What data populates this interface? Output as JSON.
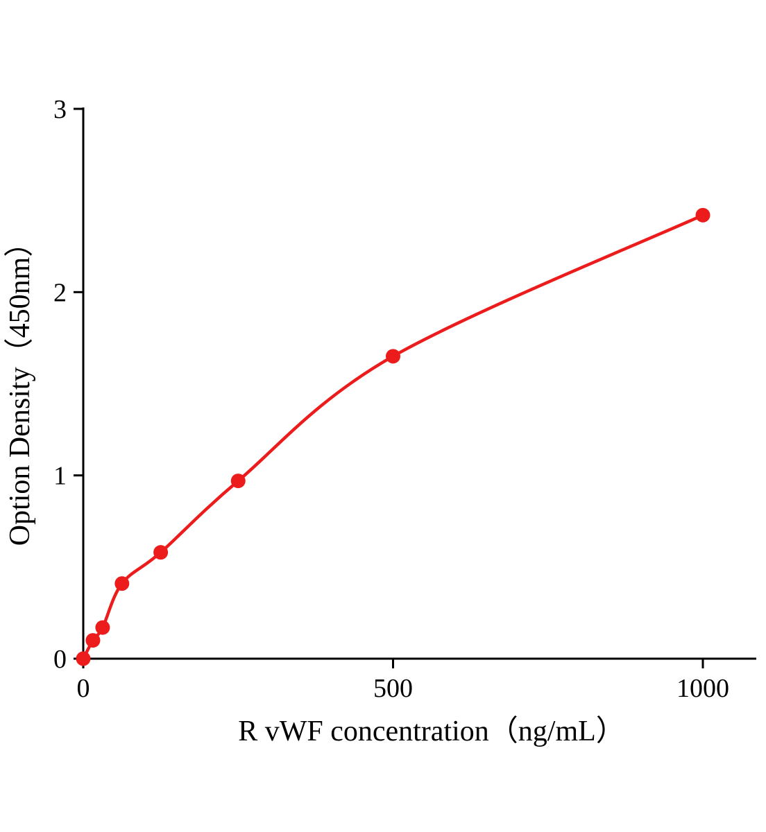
{
  "page": {
    "background": "#ffffff"
  },
  "chart_data": {
    "type": "scatter",
    "subtype": "standard-curve with smoothed fit line and round markers",
    "title": "",
    "xlabel": "R vWF concentration（ng/mL）",
    "ylabel": "Option Density（450nm）",
    "x": [
      0,
      15.625,
      31.25,
      62.5,
      125,
      250,
      500,
      1000
    ],
    "y": [
      0,
      0.1,
      0.17,
      0.41,
      0.58,
      0.97,
      1.65,
      2.42
    ],
    "xticks": [
      0,
      500,
      1000
    ],
    "yticks": [
      0,
      1,
      2,
      3
    ],
    "xlim": [
      0,
      1086
    ],
    "ylim": [
      0,
      3
    ],
    "grid": false,
    "legend": false,
    "colors": {
      "line": "#ec1c1c",
      "marker": "#ec1c1c",
      "axis": "#000000",
      "text": "#000000"
    }
  }
}
